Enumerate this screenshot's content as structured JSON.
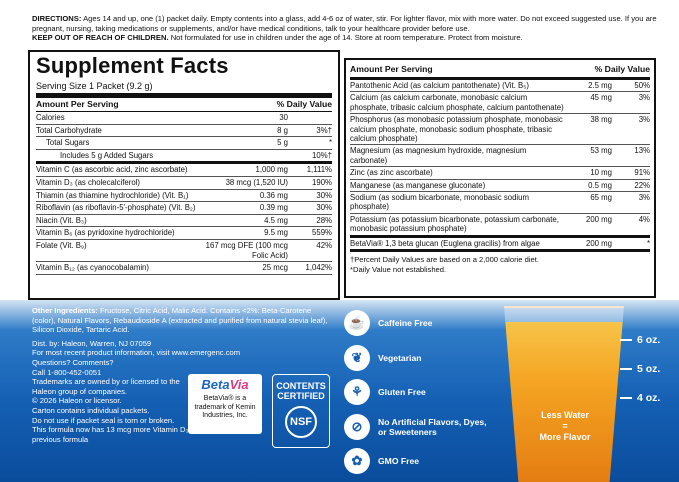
{
  "directions": {
    "label": "DIRECTIONS:",
    "text": "Ages 14 and up, one (1) packet daily. Empty contents into a glass, add 4-6 oz of water, stir. For lighter flavor, mix with more water. Do not exceed suggested use. If you are pregnant, nursing, taking medications or supplements, and/or have medical conditions, talk to your healthcare provider before use.",
    "warning_label": "KEEP OUT OF REACH OF CHILDREN.",
    "warning_text": "Not formulated for use in children under the age of 14. Store at room temperature. Protect from moisture."
  },
  "supplement_facts": {
    "title": "Supplement Facts",
    "serving_size": "Serving Size 1 Packet (9.2 g)",
    "header_amount": "Amount Per Serving",
    "header_dv": "% Daily Value",
    "left_rows": [
      {
        "name": "Calories",
        "amount": "30",
        "dv": ""
      },
      {
        "name": "Total Carbohydrate",
        "amount": "8 g",
        "dv": "3%†"
      },
      {
        "name": "Total Sugars",
        "amount": "5 g",
        "dv": "*"
      },
      {
        "name": "Includes 5 g Added Sugars",
        "amount": "",
        "dv": "10%†"
      },
      {
        "name": "Vitamin C (as ascorbic acid, zinc ascorbate)",
        "amount": "1,000 mg",
        "dv": "1,111%"
      },
      {
        "name": "Vitamin D₃ (as cholecalciferol)",
        "amount": "38 mcg (1,520 IU)",
        "dv": "190%"
      },
      {
        "name": "Thiamin (as thiamine hydrochloride) (Vit. B₁)",
        "amount": "0.36 mg",
        "dv": "30%"
      },
      {
        "name": "Riboflavin (as riboflavin-5'-phosphate) (Vit. B₂)",
        "amount": "0.39 mg",
        "dv": "30%"
      },
      {
        "name": "Niacin (Vit. B₃)",
        "amount": "4.5 mg",
        "dv": "28%"
      },
      {
        "name": "Vitamin B₆ (as pyridoxine hydrochloride)",
        "amount": "9.5 mg",
        "dv": "559%"
      },
      {
        "name": "Folate (Vit. B₉)",
        "amount": "167 mcg DFE (100 mcg Folic Acid)",
        "dv": "42%"
      },
      {
        "name": "Vitamin B₁₂ (as cyanocobalamin)",
        "amount": "25 mcg",
        "dv": "1,042%"
      }
    ],
    "right_rows": [
      {
        "name": "Pantothenic Acid (as calcium pantothenate) (Vit. B₅)",
        "amount": "2.5 mg",
        "dv": "50%"
      },
      {
        "name": "Calcium (as calcium carbonate, monobasic calcium phosphate, tribasic calcium phosphate, calcium pantothenate)",
        "amount": "45 mg",
        "dv": "3%"
      },
      {
        "name": "Phosphorus (as monobasic potassium phosphate, monobasic calcium phosphate, monobasic sodium phosphate, tribasic calcium phosphate)",
        "amount": "38 mg",
        "dv": "3%"
      },
      {
        "name": "Magnesium (as magnesium hydroxide, magnesium carbonate)",
        "amount": "53 mg",
        "dv": "13%"
      },
      {
        "name": "Zinc (as zinc ascorbate)",
        "amount": "10 mg",
        "dv": "91%"
      },
      {
        "name": "Manganese (as manganese gluconate)",
        "amount": "0.5 mg",
        "dv": "22%"
      },
      {
        "name": "Sodium (as sodium bicarbonate, monobasic sodium phosphate)",
        "amount": "65 mg",
        "dv": "3%"
      },
      {
        "name": "Potassium (as potassium bicarbonate, potassium carbonate, monobasic potassium phosphate)",
        "amount": "200 mg",
        "dv": "4%"
      },
      {
        "name": "BetaVia® 1,3 beta glucan (Euglena gracilis) from algae",
        "amount": "200 mg",
        "dv": "*"
      }
    ],
    "footnote_1": "†Percent Daily Values are based on a 2,000 calorie diet.",
    "footnote_2": "*Daily Value not established."
  },
  "other": {
    "ingredients_label": "Other Ingredients:",
    "ingredients_text": "Fructose, Citric Acid, Malic Acid. Contains <2%: Beta-Carotene (color), Natural Flavors, Rebaudioside A (extracted and purified from natural stevia leaf), Silicon Dioxide, Tartaric Acid.",
    "dist": "Dist. by: Haleon, Warren, NJ 07059",
    "info": "For most recent product information, visit www.emergenc.com",
    "questions": "Questions? Comments?",
    "call": "Call 1-800-452-0051",
    "trademarks": "Trademarks are owned by or licensed to the Haleon group of companies.",
    "copyright": "© 2026 Haleon or licensor.",
    "carton": "Carton contains individual packets.",
    "packet": "Do not use if packet seal is torn or broken.",
    "formula": "This formula now has 13 mcg more Vitamin D₃ than the previous formula"
  },
  "betavia": {
    "logo_main": "Beta",
    "logo_accent": "Via",
    "text": "BetaVia® is a trademark of Kemin Industries, Inc."
  },
  "nsf": {
    "line1": "CONTENTS",
    "line2": "CERTIFIED",
    "mark": "NSF"
  },
  "claims": [
    {
      "icon": "caffeine-free-icon",
      "glyph": "☕",
      "label": "Caffeine Free"
    },
    {
      "icon": "leaf-icon",
      "glyph": "❦",
      "label": "Vegetarian"
    },
    {
      "icon": "wheat-icon",
      "glyph": "⚘",
      "label": "Gluten Free"
    },
    {
      "icon": "no-artificial-icon",
      "glyph": "⊘",
      "label": "No Artificial Flavors, Dyes, or Sweeteners"
    },
    {
      "icon": "gmo-free-icon",
      "glyph": "✿",
      "label": "GMO Free"
    }
  ],
  "glass": {
    "line1": "Less Water",
    "eq": "=",
    "line2": "More Flavor",
    "oz6": "6 oz.",
    "oz5": "5 oz.",
    "oz4": "4 oz."
  }
}
